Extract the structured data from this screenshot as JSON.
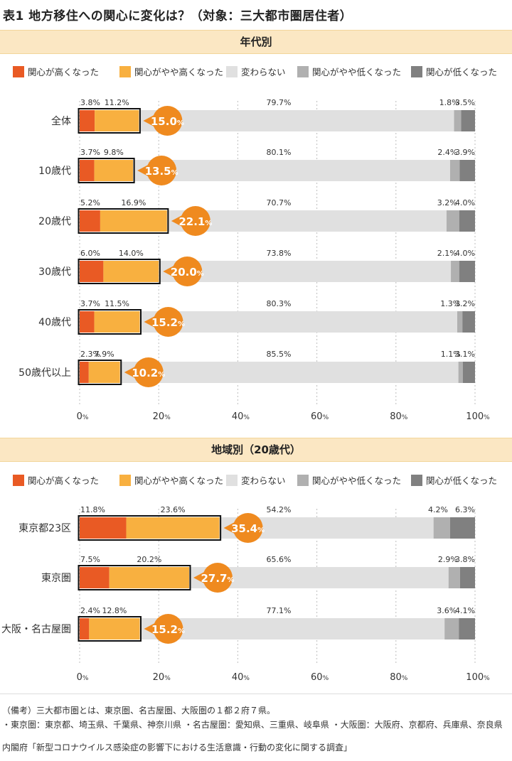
{
  "title": "表1 地方移住への関心に変化は？（対象：三大都市圏居住者）",
  "legend": [
    "関心が高くなった",
    "関心がやや高くなった",
    "変わらない",
    "関心がやや低くなった",
    "関心が低くなった"
  ],
  "colors": [
    "#e95a24",
    "#f8b040",
    "#e0e0e0",
    "#b0b0b0",
    "#808080"
  ],
  "callout_color": "#ef8a1f",
  "pct_suffix": "%",
  "x_ticks": [
    "0",
    "20",
    "40",
    "60",
    "80",
    "100"
  ],
  "footnotes": [
    "（備考）三大都市圏とは、東京圏、名古屋圏、大阪圏の１都２府７県。",
    "・東京圏：東京都、埼玉県、千葉県、神奈川県 ・名古屋圏：愛知県、三重県、岐阜県 ・大阪圏：大阪府、京都府、兵庫県、奈良県"
  ],
  "source": "内閣府「新型コロナウイルス感染症の影響下における生活意識・行動の変化に関する調査」",
  "chart_data": [
    {
      "type": "bar",
      "orientation": "horizontal",
      "stacked": true,
      "title": "年代別",
      "xlim": [
        0,
        100
      ],
      "categories": [
        "全体",
        "10歳代",
        "20歳代",
        "30歳代",
        "40歳代",
        "50歳代以上"
      ],
      "series": [
        {
          "name": "関心が高くなった",
          "values": [
            3.8,
            3.7,
            5.2,
            6.0,
            3.7,
            2.3
          ]
        },
        {
          "name": "関心がやや高くなった",
          "values": [
            11.2,
            9.8,
            16.9,
            14.0,
            11.5,
            7.9
          ]
        },
        {
          "name": "変わらない",
          "values": [
            79.7,
            80.1,
            70.7,
            73.8,
            80.3,
            85.5
          ]
        },
        {
          "name": "関心がやや低くなった",
          "values": [
            1.8,
            2.4,
            3.2,
            2.1,
            1.3,
            1.1
          ]
        },
        {
          "name": "関心が低くなった",
          "values": [
            3.5,
            3.9,
            4.0,
            4.0,
            3.2,
            3.1
          ]
        }
      ],
      "callout_totals": [
        15.0,
        13.5,
        22.1,
        20.0,
        15.2,
        10.2
      ]
    },
    {
      "type": "bar",
      "orientation": "horizontal",
      "stacked": true,
      "title": "地域別（20歳代）",
      "xlim": [
        0,
        100
      ],
      "categories": [
        "東京都23区",
        "東京圏",
        "大阪・名古屋圏"
      ],
      "series": [
        {
          "name": "関心が高くなった",
          "values": [
            11.8,
            7.5,
            2.4
          ]
        },
        {
          "name": "関心がやや高くなった",
          "values": [
            23.6,
            20.2,
            12.8
          ]
        },
        {
          "name": "変わらない",
          "values": [
            54.2,
            65.6,
            77.1
          ]
        },
        {
          "name": "関心がやや低くなった",
          "values": [
            4.2,
            2.9,
            3.6
          ]
        },
        {
          "name": "関心が低くなった",
          "values": [
            6.3,
            3.8,
            4.1
          ]
        }
      ],
      "callout_totals": [
        35.4,
        27.7,
        15.2
      ]
    }
  ]
}
